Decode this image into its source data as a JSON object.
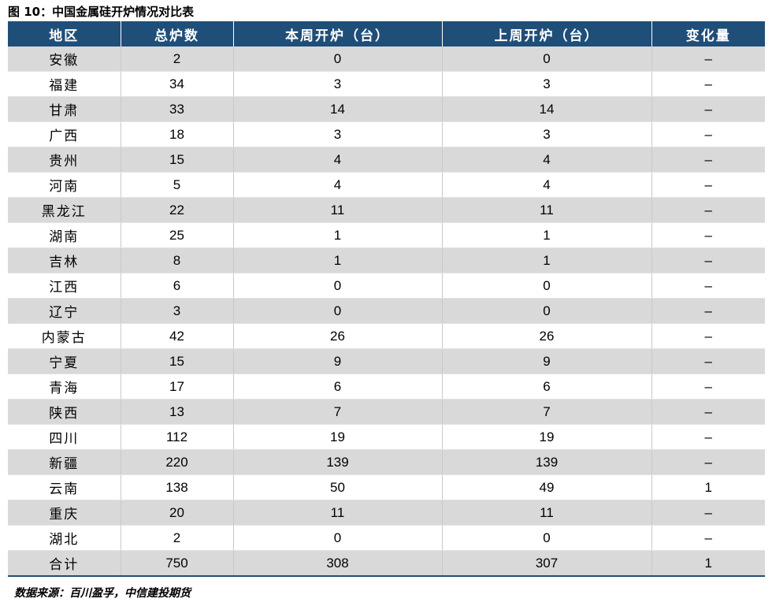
{
  "title": "图 10：中国金属硅开炉情况对比表",
  "headers": [
    "地区",
    "总炉数",
    "本周开炉（台）",
    "上周开炉（台）",
    "变化量"
  ],
  "rows": [
    {
      "region": "安徽",
      "total": "2",
      "this_week": "0",
      "last_week": "0",
      "change": "–"
    },
    {
      "region": "福建",
      "total": "34",
      "this_week": "3",
      "last_week": "3",
      "change": "–"
    },
    {
      "region": "甘肃",
      "total": "33",
      "this_week": "14",
      "last_week": "14",
      "change": "–"
    },
    {
      "region": "广西",
      "total": "18",
      "this_week": "3",
      "last_week": "3",
      "change": "–"
    },
    {
      "region": "贵州",
      "total": "15",
      "this_week": "4",
      "last_week": "4",
      "change": "–"
    },
    {
      "region": "河南",
      "total": "5",
      "this_week": "4",
      "last_week": "4",
      "change": "–"
    },
    {
      "region": "黑龙江",
      "total": "22",
      "this_week": "11",
      "last_week": "11",
      "change": "–"
    },
    {
      "region": "湖南",
      "total": "25",
      "this_week": "1",
      "last_week": "1",
      "change": "–"
    },
    {
      "region": "吉林",
      "total": "8",
      "this_week": "1",
      "last_week": "1",
      "change": "–"
    },
    {
      "region": "江西",
      "total": "6",
      "this_week": "0",
      "last_week": "0",
      "change": "–"
    },
    {
      "region": "辽宁",
      "total": "3",
      "this_week": "0",
      "last_week": "0",
      "change": "–"
    },
    {
      "region": "内蒙古",
      "total": "42",
      "this_week": "26",
      "last_week": "26",
      "change": "–"
    },
    {
      "region": "宁夏",
      "total": "15",
      "this_week": "9",
      "last_week": "9",
      "change": "–"
    },
    {
      "region": "青海",
      "total": "17",
      "this_week": "6",
      "last_week": "6",
      "change": "–"
    },
    {
      "region": "陕西",
      "total": "13",
      "this_week": "7",
      "last_week": "7",
      "change": "–"
    },
    {
      "region": "四川",
      "total": "112",
      "this_week": "19",
      "last_week": "19",
      "change": "–"
    },
    {
      "region": "新疆",
      "total": "220",
      "this_week": "139",
      "last_week": "139",
      "change": "–"
    },
    {
      "region": "云南",
      "total": "138",
      "this_week": "50",
      "last_week": "49",
      "change": "1"
    },
    {
      "region": "重庆",
      "total": "20",
      "this_week": "11",
      "last_week": "11",
      "change": "–"
    },
    {
      "region": "湖北",
      "total": "2",
      "this_week": "0",
      "last_week": "0",
      "change": "–"
    },
    {
      "region": "合计",
      "total": "750",
      "this_week": "308",
      "last_week": "307",
      "change": "1"
    }
  ],
  "source": "数据来源：百川盈孚，中信建投期货",
  "colors": {
    "header_bg": "#1f4e79",
    "header_text": "#ffffff",
    "stripe": "#d9d9d9"
  }
}
